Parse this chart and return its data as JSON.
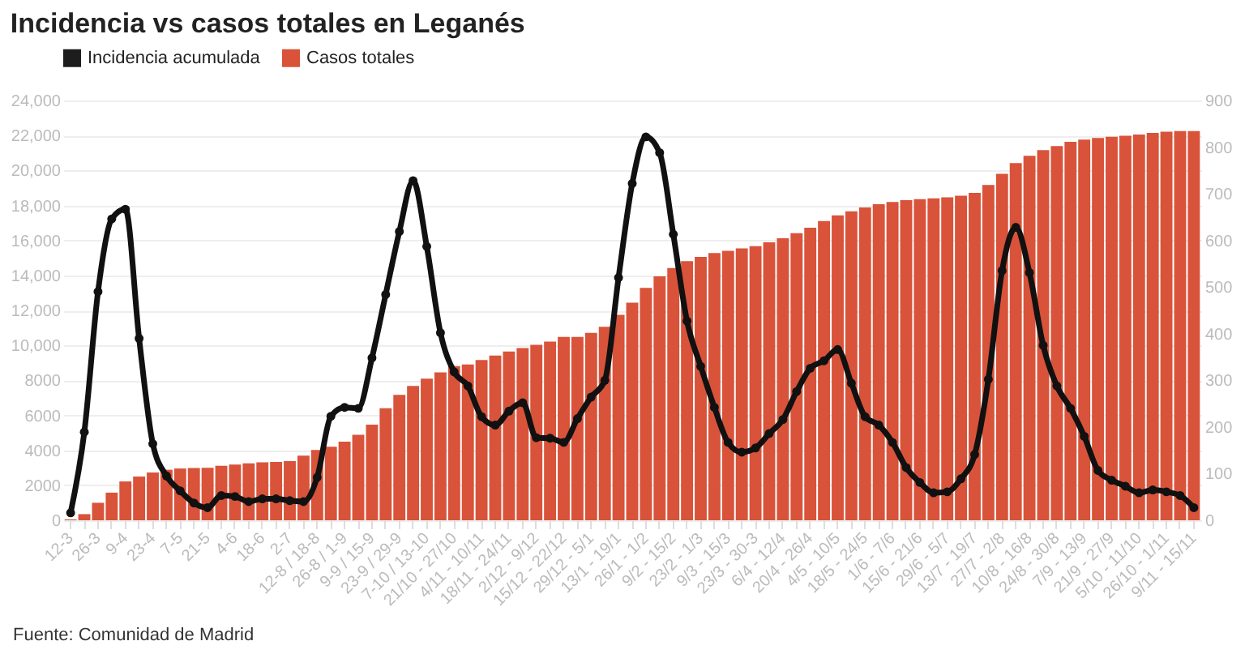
{
  "chart_data": {
    "type": "bar",
    "title": "Incidencia vs casos totales en Leganés",
    "categories": [
      "12-3",
      null,
      "26-3",
      null,
      "9-4",
      null,
      "23-4",
      null,
      "7-5",
      null,
      "21-5",
      null,
      "4-6",
      null,
      "18-6",
      null,
      "2-7",
      null,
      "12-8 / 18-8",
      null,
      "26-8 / 1-9",
      null,
      "9-9 / 15-9",
      null,
      "23-9 / 29-9",
      null,
      "7-10 / 13-10",
      null,
      "21/10 - 27/10",
      null,
      "4/11 - 10/11",
      null,
      "18/11 - 24/11",
      null,
      "2/12 - 9/12",
      null,
      "15/12 - 22/12",
      null,
      "29/12 - 5/1",
      null,
      "13/1 - 19/1",
      null,
      "26/1 - 1/2",
      null,
      "9/2 - 15/2",
      null,
      "23/2 - 1/3",
      null,
      "9/3 - 15/3",
      null,
      "23/3 - 30-3",
      null,
      "6/4 - 12/4",
      null,
      "20/4 - 26/4",
      null,
      "4/5 - 10/5",
      null,
      "18/5 - 24/5",
      null,
      "1/6 - 7/6",
      null,
      "15/6 - 21/6",
      null,
      "29/6 - 5/7",
      null,
      "13/7 - 19/7",
      null,
      "27/7 - 2/8",
      null,
      "10/8 - 16/8",
      null,
      "24/8 - 30/8",
      null,
      "7/9 - 13/9",
      null,
      "21/9 - 27/9",
      null,
      "5/10 - 11/10",
      null,
      "26/10 - 1/11",
      null,
      "9/11 - 15/11"
    ],
    "series": [
      {
        "name": "Incidencia acumulada",
        "type": "line",
        "axis": "y2",
        "color": "#111111",
        "values": [
          16,
          189,
          490,
          646,
          667,
          390,
          164,
          95,
          63,
          37,
          27,
          53,
          51,
          40,
          46,
          46,
          42,
          40,
          92,
          223,
          242,
          240,
          348,
          484,
          619,
          728,
          587,
          402,
          318,
          288,
          222,
          204,
          234,
          252,
          177,
          176,
          167,
          218,
          264,
          300,
          520,
          722,
          822,
          788,
          613,
          427,
          330,
          242,
          167,
          146,
          155,
          186,
          216,
          276,
          326,
          342,
          366,
          294,
          222,
          204,
          167,
          113,
          81,
          59,
          61,
          89,
          141,
          302,
          535,
          628,
          531,
          375,
          288,
          240,
          180,
          107,
          86,
          73,
          59,
          65,
          61,
          53,
          27
        ]
      },
      {
        "name": "Casos totales",
        "color": "#d64a2f",
        "values": [
          50,
          350,
          1000,
          1580,
          2220,
          2500,
          2730,
          2890,
          2960,
          2990,
          3000,
          3120,
          3180,
          3250,
          3310,
          3340,
          3380,
          3700,
          4020,
          4210,
          4500,
          4890,
          5470,
          6400,
          7170,
          7680,
          8100,
          8450,
          8810,
          8910,
          9160,
          9420,
          9650,
          9840,
          10030,
          10220,
          10480,
          10480,
          10710,
          11060,
          11740,
          12440,
          13280,
          13950,
          14420,
          14810,
          15060,
          15280,
          15400,
          15540,
          15670,
          15890,
          16120,
          16410,
          16730,
          17110,
          17430,
          17660,
          17880,
          18070,
          18200,
          18300,
          18360,
          18400,
          18460,
          18560,
          18720,
          19170,
          19810,
          20420,
          20840,
          21160,
          21390,
          21640,
          21770,
          21860,
          21930,
          21990,
          22050,
          22150,
          22220,
          22250,
          22250
        ]
      }
    ],
    "ylim": [
      0,
      24000
    ],
    "yticks": [
      0,
      2000,
      4000,
      6000,
      8000,
      {
        "value": 10000,
        "label": "10,000"
      },
      {
        "value": 12000,
        "label": "12,000"
      },
      {
        "value": 14000,
        "label": "14,000"
      },
      {
        "value": 16000,
        "label": "16,000"
      },
      {
        "value": 18000,
        "label": "18,000"
      },
      {
        "value": 20000,
        "label": "20,000"
      },
      {
        "value": 22000,
        "label": "22,000"
      },
      {
        "value": 24000,
        "label": "24,000"
      }
    ],
    "y2lim": [
      0,
      900
    ],
    "y2ticks": [
      0,
      100,
      200,
      300,
      400,
      500,
      600,
      700,
      800,
      900
    ],
    "grid": "y",
    "legend": "top left",
    "marker": "circle",
    "line_style": "solid",
    "annotations": [
      "Fuente: Comunidad de Madrid"
    ]
  }
}
